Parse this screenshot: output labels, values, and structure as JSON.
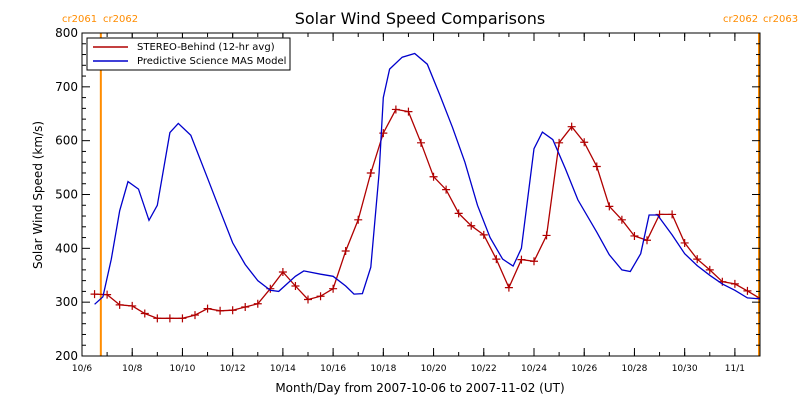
{
  "chart_data": {
    "type": "line",
    "title": "Solar Wind Speed Comparisons",
    "xlabel": "Month/Day from 2007-10-06 to 2007-11-02 (UT)",
    "ylabel": "Solar Wind Speed (km/s)",
    "xlim": [
      "2007-10-06",
      "2007-11-02"
    ],
    "ylim": [
      200,
      800
    ],
    "yticks": [
      200,
      300,
      400,
      500,
      600,
      700,
      800
    ],
    "xticks": [
      {
        "date": "2007-10-06",
        "label": "10/6"
      },
      {
        "date": "2007-10-08",
        "label": "10/8"
      },
      {
        "date": "2007-10-10",
        "label": "10/10"
      },
      {
        "date": "2007-10-12",
        "label": "10/12"
      },
      {
        "date": "2007-10-14",
        "label": "10/14"
      },
      {
        "date": "2007-10-16",
        "label": "10/16"
      },
      {
        "date": "2007-10-18",
        "label": "10/18"
      },
      {
        "date": "2007-10-20",
        "label": "10/20"
      },
      {
        "date": "2007-10-22",
        "label": "10/22"
      },
      {
        "date": "2007-10-24",
        "label": "10/24"
      },
      {
        "date": "2007-10-26",
        "label": "10/26"
      },
      {
        "date": "2007-10-28",
        "label": "10/28"
      },
      {
        "date": "2007-10-30",
        "label": "10/30"
      },
      {
        "date": "2007-11-01",
        "label": "11/1"
      }
    ],
    "grid": false,
    "legend_position": "top-left",
    "rotation_markers": [
      {
        "labels": [
          "cr2061",
          "cr2062"
        ],
        "date": "2007-10-06 18:00",
        "color": "#ff8c00"
      },
      {
        "labels": [
          "cr2062",
          "cr2063"
        ],
        "date": "2007-11-02 00:00",
        "color": "#ff8c00"
      }
    ],
    "series": [
      {
        "name": "STEREO-Behind (12-hr avg)",
        "color": "#b00000",
        "marker": "plus",
        "points": [
          [
            "2007-10-06 12:00",
            315
          ],
          [
            "2007-10-07 00:00",
            314
          ],
          [
            "2007-10-07 12:00",
            295
          ],
          [
            "2007-10-08 00:00",
            293
          ],
          [
            "2007-10-08 12:00",
            279
          ],
          [
            "2007-10-09 00:00",
            270
          ],
          [
            "2007-10-09 12:00",
            270
          ],
          [
            "2007-10-10 00:00",
            270
          ],
          [
            "2007-10-10 12:00",
            276
          ],
          [
            "2007-10-11 00:00",
            288
          ],
          [
            "2007-10-11 12:00",
            284
          ],
          [
            "2007-10-12 00:00",
            285
          ],
          [
            "2007-10-12 12:00",
            291
          ],
          [
            "2007-10-13 00:00",
            297
          ],
          [
            "2007-10-13 12:00",
            325
          ],
          [
            "2007-10-14 00:00",
            356
          ],
          [
            "2007-10-14 12:00",
            330
          ],
          [
            "2007-10-15 00:00",
            305
          ],
          [
            "2007-10-15 12:00",
            311
          ],
          [
            "2007-10-16 00:00",
            325
          ],
          [
            "2007-10-16 12:00",
            395
          ],
          [
            "2007-10-17 00:00",
            453
          ],
          [
            "2007-10-17 12:00",
            540
          ],
          [
            "2007-10-18 00:00",
            614
          ],
          [
            "2007-10-18 12:00",
            658
          ],
          [
            "2007-10-19 00:00",
            654
          ],
          [
            "2007-10-19 12:00",
            596
          ],
          [
            "2007-10-20 00:00",
            533
          ],
          [
            "2007-10-20 12:00",
            509
          ],
          [
            "2007-10-21 00:00",
            465
          ],
          [
            "2007-10-21 12:00",
            442
          ],
          [
            "2007-10-22 00:00",
            425
          ],
          [
            "2007-10-22 12:00",
            380
          ],
          [
            "2007-10-23 00:00",
            327
          ],
          [
            "2007-10-23 12:00",
            379
          ],
          [
            "2007-10-24 00:00",
            376
          ],
          [
            "2007-10-24 12:00",
            424
          ],
          [
            "2007-10-25 00:00",
            596
          ],
          [
            "2007-10-25 12:00",
            626
          ],
          [
            "2007-10-26 00:00",
            597
          ],
          [
            "2007-10-26 12:00",
            552
          ],
          [
            "2007-10-27 00:00",
            478
          ],
          [
            "2007-10-27 12:00",
            453
          ],
          [
            "2007-10-28 00:00",
            423
          ],
          [
            "2007-10-28 12:00",
            415
          ],
          [
            "2007-10-29 00:00",
            463
          ],
          [
            "2007-10-29 12:00",
            463
          ],
          [
            "2007-10-30 00:00",
            410
          ],
          [
            "2007-10-30 12:00",
            380
          ],
          [
            "2007-10-31 00:00",
            360
          ],
          [
            "2007-10-31 12:00",
            338
          ],
          [
            "2007-11-01 00:00",
            334
          ],
          [
            "2007-11-01 12:00",
            321
          ],
          [
            "2007-11-02 00:00",
            307
          ],
          [
            "2007-11-02 12:00",
            295
          ]
        ]
      },
      {
        "name": "Predictive Science MAS Model",
        "color": "#0000cc",
        "marker": "none",
        "points": [
          [
            "2007-10-06 12:00",
            296
          ],
          [
            "2007-10-06 20:00",
            310
          ],
          [
            "2007-10-07 04:00",
            380
          ],
          [
            "2007-10-07 12:00",
            470
          ],
          [
            "2007-10-07 20:00",
            524
          ],
          [
            "2007-10-08 06:00",
            510
          ],
          [
            "2007-10-08 16:00",
            452
          ],
          [
            "2007-10-09 00:00",
            480
          ],
          [
            "2007-10-09 12:00",
            615
          ],
          [
            "2007-10-09 20:00",
            632
          ],
          [
            "2007-10-10 08:00",
            610
          ],
          [
            "2007-10-11 00:00",
            530
          ],
          [
            "2007-10-11 12:00",
            470
          ],
          [
            "2007-10-12 00:00",
            410
          ],
          [
            "2007-10-12 12:00",
            370
          ],
          [
            "2007-10-13 00:00",
            340
          ],
          [
            "2007-10-13 12:00",
            322
          ],
          [
            "2007-10-13 20:00",
            320
          ],
          [
            "2007-10-14 12:00",
            348
          ],
          [
            "2007-10-14 20:00",
            358
          ],
          [
            "2007-10-15 12:00",
            352
          ],
          [
            "2007-10-16 00:00",
            348
          ],
          [
            "2007-10-16 12:00",
            330
          ],
          [
            "2007-10-16 20:00",
            315
          ],
          [
            "2007-10-17 04:00",
            316
          ],
          [
            "2007-10-17 12:00",
            365
          ],
          [
            "2007-10-17 20:00",
            540
          ],
          [
            "2007-10-18 00:00",
            680
          ],
          [
            "2007-10-18 06:00",
            733
          ],
          [
            "2007-10-18 18:00",
            755
          ],
          [
            "2007-10-19 06:00",
            762
          ],
          [
            "2007-10-19 18:00",
            742
          ],
          [
            "2007-10-20 06:00",
            685
          ],
          [
            "2007-10-20 18:00",
            625
          ],
          [
            "2007-10-21 06:00",
            560
          ],
          [
            "2007-10-21 18:00",
            480
          ],
          [
            "2007-10-22 06:00",
            420
          ],
          [
            "2007-10-22 18:00",
            380
          ],
          [
            "2007-10-23 04:00",
            367
          ],
          [
            "2007-10-23 12:00",
            400
          ],
          [
            "2007-10-24 00:00",
            585
          ],
          [
            "2007-10-24 08:00",
            616
          ],
          [
            "2007-10-24 18:00",
            602
          ],
          [
            "2007-10-25 06:00",
            548
          ],
          [
            "2007-10-25 18:00",
            490
          ],
          [
            "2007-10-26 12:00",
            430
          ],
          [
            "2007-10-27 00:00",
            388
          ],
          [
            "2007-10-27 12:00",
            360
          ],
          [
            "2007-10-27 20:00",
            357
          ],
          [
            "2007-10-28 06:00",
            390
          ],
          [
            "2007-10-28 14:00",
            462
          ],
          [
            "2007-10-28 22:00",
            462
          ],
          [
            "2007-10-29 12:00",
            425
          ],
          [
            "2007-10-30 00:00",
            390
          ],
          [
            "2007-10-30 12:00",
            368
          ],
          [
            "2007-10-31 00:00",
            350
          ],
          [
            "2007-10-31 12:00",
            334
          ],
          [
            "2007-11-01 00:00",
            322
          ],
          [
            "2007-11-01 12:00",
            308
          ],
          [
            "2007-11-02 00:00",
            306
          ],
          [
            "2007-11-03 00:00",
            306
          ]
        ]
      }
    ]
  }
}
